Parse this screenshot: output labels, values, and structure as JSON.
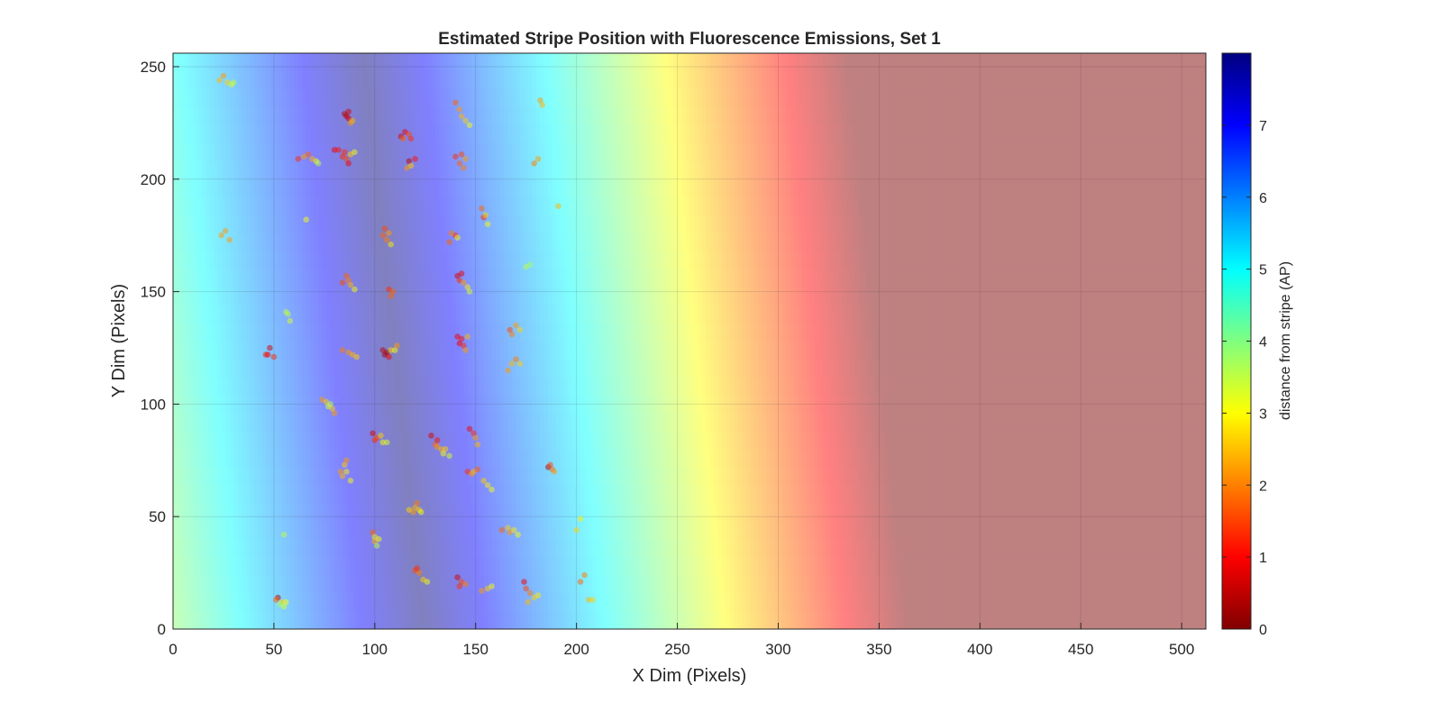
{
  "chart_data": {
    "type": "scatter",
    "title": "Estimated Stripe Position with Fluorescence Emissions, Set 1",
    "xlabel": "X Dim (Pixels)",
    "ylabel": "Y Dim (Pixels)",
    "xlim": [
      0,
      512
    ],
    "ylim": [
      0,
      256
    ],
    "xticks": [
      0,
      50,
      100,
      150,
      200,
      250,
      300,
      350,
      400,
      450,
      500
    ],
    "yticks": [
      0,
      50,
      100,
      150,
      200,
      250
    ],
    "grid": true,
    "colorbar": {
      "label": "distance from stripe (AP)",
      "colormap": "jet",
      "range": [
        0,
        8
      ],
      "ticks": [
        0,
        1,
        2,
        3,
        4,
        5,
        6,
        7
      ]
    },
    "background": {
      "description_values": "stripe distance field; stripe center line x = 109 + 0.12*(128 - y), distance saturates at 8 AP",
      "center_x_at_y0": 124,
      "center_x_at_y256": 94,
      "pixels_per_ap": 30,
      "saturation_ap": 8,
      "overlay_alpha": 0.5
    },
    "points": [
      [
        23,
        244,
        0.55
      ],
      [
        25,
        246,
        0.5
      ],
      [
        27,
        243,
        0.6
      ],
      [
        29,
        242,
        0.75
      ],
      [
        30,
        243,
        0.8
      ],
      [
        24,
        175,
        0.5
      ],
      [
        26,
        177,
        0.5
      ],
      [
        28,
        173,
        0.5
      ],
      [
        57,
        140,
        0.8
      ],
      [
        58,
        137,
        0.75
      ],
      [
        56,
        141,
        0.8
      ],
      [
        47,
        122,
        0.2
      ],
      [
        48,
        125,
        0.15
      ],
      [
        50,
        121,
        0.3
      ],
      [
        46,
        122,
        0.25
      ],
      [
        52,
        14,
        0.1
      ],
      [
        54,
        12,
        0.6
      ],
      [
        53,
        11,
        0.85
      ],
      [
        55,
        10,
        0.75
      ],
      [
        56,
        12,
        0.7
      ],
      [
        51,
        13,
        0.4
      ],
      [
        55,
        42,
        0.8
      ],
      [
        62,
        209,
        0.3
      ],
      [
        65,
        210,
        0.5
      ],
      [
        67,
        211,
        0.4
      ],
      [
        69,
        209,
        0.55
      ],
      [
        71,
        208,
        0.7
      ],
      [
        72,
        207,
        0.8
      ],
      [
        66,
        182,
        0.7
      ],
      [
        74,
        102,
        0.5
      ],
      [
        76,
        101,
        0.6
      ],
      [
        77,
        99,
        0.75
      ],
      [
        79,
        98,
        0.6
      ],
      [
        80,
        96,
        0.5
      ],
      [
        78,
        100,
        0.8
      ],
      [
        85,
        229,
        0.1
      ],
      [
        86,
        228,
        0.1
      ],
      [
        87,
        227,
        0.15
      ],
      [
        88,
        225,
        0.5
      ],
      [
        89,
        226,
        0.55
      ],
      [
        87,
        230,
        0.15
      ],
      [
        80,
        213,
        0.2
      ],
      [
        82,
        213,
        0.25
      ],
      [
        84,
        210,
        0.3
      ],
      [
        86,
        209,
        0.35
      ],
      [
        85,
        212,
        0.3
      ],
      [
        88,
        211,
        0.6
      ],
      [
        90,
        212,
        0.7
      ],
      [
        87,
        207,
        0.2
      ],
      [
        84,
        154,
        0.35
      ],
      [
        86,
        157,
        0.4
      ],
      [
        88,
        153,
        0.55
      ],
      [
        90,
        151,
        0.7
      ],
      [
        87,
        155,
        0.45
      ],
      [
        84,
        124,
        0.45
      ],
      [
        87,
        123,
        0.5
      ],
      [
        89,
        122,
        0.55
      ],
      [
        91,
        121,
        0.6
      ],
      [
        83,
        70,
        0.5
      ],
      [
        85,
        73,
        0.6
      ],
      [
        86,
        70,
        0.65
      ],
      [
        88,
        66,
        0.7
      ],
      [
        84,
        68,
        0.55
      ],
      [
        86,
        75,
        0.5
      ],
      [
        99,
        87,
        0.15
      ],
      [
        100,
        84,
        0.3
      ],
      [
        101,
        85,
        0.35
      ],
      [
        103,
        86,
        0.6
      ],
      [
        104,
        83,
        0.7
      ],
      [
        106,
        83,
        0.75
      ],
      [
        99,
        43,
        0.4
      ],
      [
        100,
        39,
        0.55
      ],
      [
        101,
        37,
        0.8
      ],
      [
        102,
        40,
        0.7
      ],
      [
        100,
        41,
        0.65
      ],
      [
        104,
        175,
        0.4
      ],
      [
        106,
        173,
        0.45
      ],
      [
        107,
        176,
        0.5
      ],
      [
        108,
        171,
        0.65
      ],
      [
        105,
        178,
        0.35
      ],
      [
        105,
        122,
        0.05
      ],
      [
        106,
        123,
        0.08
      ],
      [
        107,
        121,
        0.2
      ],
      [
        104,
        124,
        0.1
      ],
      [
        108,
        124,
        0.6
      ],
      [
        110,
        124,
        0.7
      ],
      [
        111,
        126,
        0.5
      ],
      [
        107,
        151,
        0.3
      ],
      [
        109,
        150,
        0.4
      ],
      [
        108,
        148,
        0.4
      ],
      [
        113,
        219,
        0.15
      ],
      [
        115,
        221,
        0.2
      ],
      [
        117,
        220,
        0.35
      ],
      [
        118,
        218,
        0.3
      ],
      [
        114,
        218,
        0.4
      ],
      [
        117,
        208,
        0.1
      ],
      [
        118,
        206,
        0.6
      ],
      [
        120,
        209,
        0.25
      ],
      [
        116,
        205,
        0.5
      ],
      [
        119,
        52,
        0.5
      ],
      [
        120,
        54,
        0.55
      ],
      [
        122,
        53,
        0.6
      ],
      [
        121,
        56,
        0.45
      ],
      [
        123,
        52,
        0.7
      ],
      [
        117,
        53,
        0.6
      ],
      [
        120,
        26,
        0.35
      ],
      [
        122,
        25,
        0.45
      ],
      [
        121,
        27,
        0.3
      ],
      [
        124,
        22,
        0.6
      ],
      [
        126,
        21,
        0.7
      ],
      [
        128,
        86,
        0.15
      ],
      [
        130,
        82,
        0.4
      ],
      [
        131,
        81,
        0.5
      ],
      [
        133,
        80,
        0.55
      ],
      [
        135,
        80,
        0.6
      ],
      [
        134,
        78,
        0.7
      ],
      [
        137,
        77,
        0.75
      ],
      [
        131,
        84,
        0.25
      ],
      [
        140,
        234,
        0.4
      ],
      [
        142,
        231,
        0.5
      ],
      [
        143,
        228,
        0.55
      ],
      [
        145,
        226,
        0.6
      ],
      [
        147,
        224,
        0.7
      ],
      [
        140,
        210,
        0.3
      ],
      [
        142,
        207,
        0.4
      ],
      [
        144,
        205,
        0.45
      ],
      [
        143,
        211,
        0.35
      ],
      [
        145,
        209,
        0.5
      ],
      [
        140,
        175,
        0.3
      ],
      [
        141,
        174,
        0.7
      ],
      [
        137,
        172,
        0.4
      ],
      [
        138,
        176,
        0.45
      ],
      [
        141,
        157,
        0.15
      ],
      [
        142,
        155,
        0.3
      ],
      [
        143,
        158,
        0.2
      ],
      [
        144,
        154,
        0.5
      ],
      [
        146,
        152,
        0.65
      ],
      [
        147,
        150,
        0.75
      ],
      [
        141,
        130,
        0.2
      ],
      [
        142,
        127,
        0.2
      ],
      [
        144,
        126,
        0.3
      ],
      [
        145,
        124,
        0.5
      ],
      [
        146,
        130,
        0.55
      ],
      [
        143,
        129,
        0.25
      ],
      [
        141,
        23,
        0.15
      ],
      [
        143,
        21,
        0.35
      ],
      [
        145,
        20,
        0.45
      ],
      [
        142,
        19,
        0.3
      ],
      [
        146,
        70,
        0.3
      ],
      [
        148,
        69,
        0.5
      ],
      [
        149,
        70,
        0.55
      ],
      [
        151,
        71,
        0.4
      ],
      [
        147,
        89,
        0.2
      ],
      [
        149,
        87,
        0.3
      ],
      [
        150,
        85,
        0.5
      ],
      [
        151,
        82,
        0.55
      ],
      [
        153,
        187,
        0.4
      ],
      [
        154,
        183,
        0.3
      ],
      [
        155,
        184,
        0.6
      ],
      [
        156,
        180,
        0.7
      ],
      [
        154,
        66,
        0.6
      ],
      [
        156,
        64,
        0.65
      ],
      [
        158,
        62,
        0.7
      ],
      [
        153,
        17,
        0.5
      ],
      [
        156,
        18,
        0.6
      ],
      [
        158,
        19,
        0.7
      ],
      [
        163,
        44,
        0.4
      ],
      [
        166,
        45,
        0.6
      ],
      [
        167,
        43,
        0.5
      ],
      [
        169,
        44,
        0.65
      ],
      [
        171,
        42,
        0.7
      ],
      [
        166,
        115,
        0.5
      ],
      [
        168,
        118,
        0.55
      ],
      [
        170,
        120,
        0.45
      ],
      [
        172,
        118,
        0.6
      ],
      [
        167,
        133,
        0.35
      ],
      [
        168,
        131,
        0.45
      ],
      [
        170,
        135,
        0.5
      ],
      [
        172,
        133,
        0.6
      ],
      [
        175,
        161,
        0.8
      ],
      [
        177,
        162,
        0.85
      ],
      [
        174,
        21,
        0.2
      ],
      [
        175,
        18,
        0.35
      ],
      [
        177,
        16,
        0.45
      ],
      [
        179,
        14,
        0.6
      ],
      [
        176,
        12,
        0.55
      ],
      [
        181,
        15,
        0.65
      ],
      [
        179,
        207,
        0.45
      ],
      [
        181,
        209,
        0.5
      ],
      [
        182,
        235,
        0.5
      ],
      [
        183,
        233,
        0.55
      ],
      [
        186,
        72,
        0.1
      ],
      [
        188,
        71,
        0.4
      ],
      [
        189,
        70,
        0.5
      ],
      [
        187,
        73,
        0.35
      ],
      [
        191,
        188,
        0.55
      ],
      [
        200,
        44,
        0.6
      ],
      [
        202,
        49,
        0.65
      ],
      [
        202,
        21,
        0.4
      ],
      [
        204,
        24,
        0.45
      ],
      [
        206,
        13,
        0.55
      ],
      [
        208,
        13,
        0.6
      ]
    ]
  }
}
